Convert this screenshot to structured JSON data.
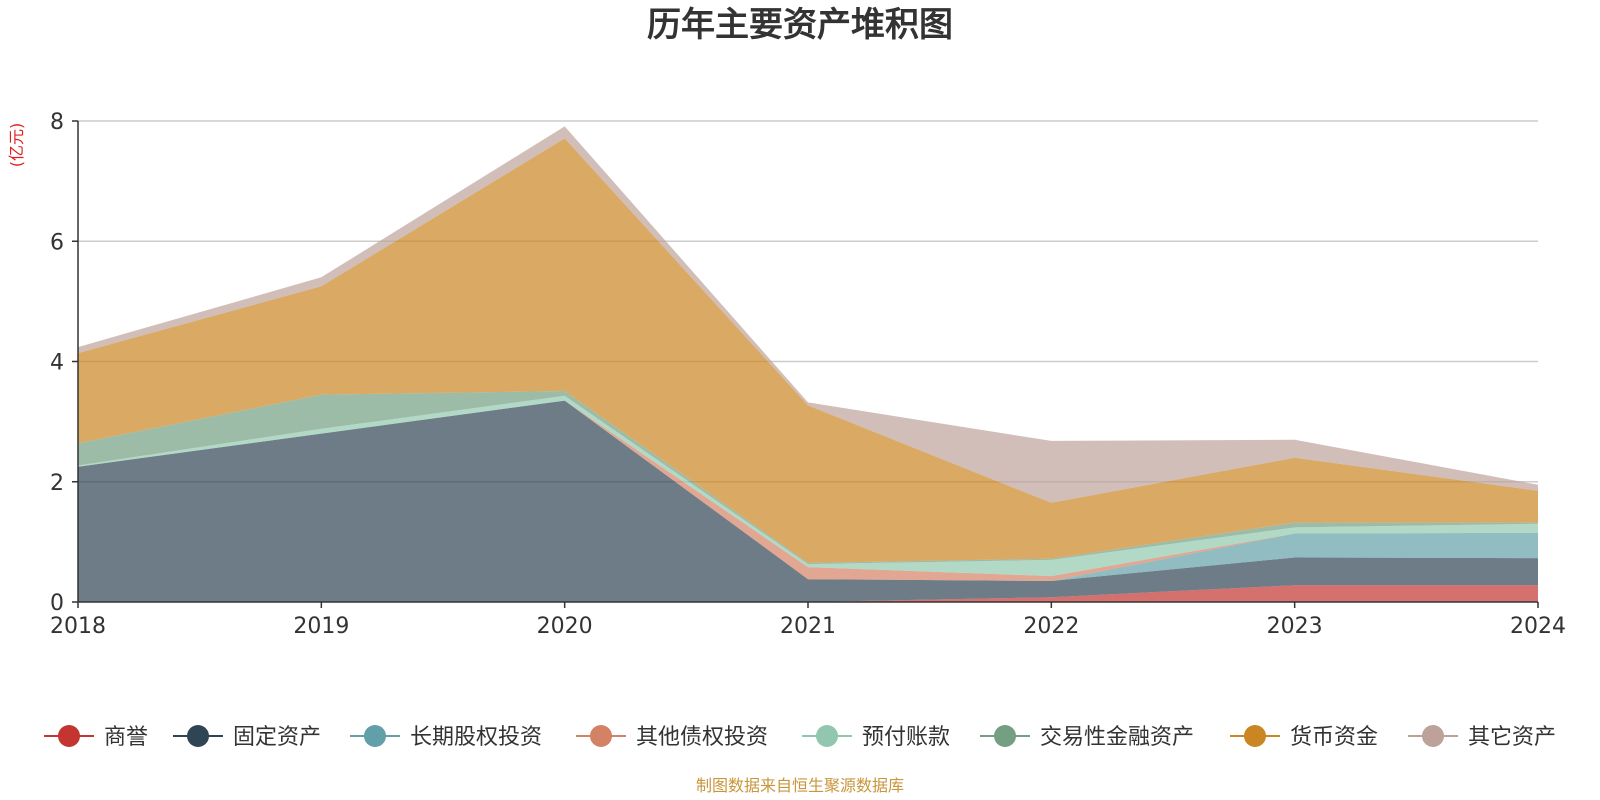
{
  "chart_data": {
    "type": "area",
    "stacked": true,
    "title": "历年主要资产堆积图",
    "y_unit": "(亿元)",
    "source": "制图数据来自恒生聚源数据库",
    "x": [
      "2018",
      "2019",
      "2020",
      "2021",
      "2022",
      "2023",
      "2024"
    ],
    "y_ticks": [
      "0",
      "2",
      "4",
      "6",
      "8"
    ],
    "ylim": [
      0,
      8
    ],
    "grid": true,
    "legend_position": "bottom",
    "series": [
      {
        "name": "商誉",
        "color": "#c23531",
        "values": [
          0,
          0,
          0,
          0,
          0.08,
          0.28,
          0.28
        ]
      },
      {
        "name": "固定资产",
        "color": "#2f4554",
        "values": [
          2.25,
          2.8,
          3.35,
          0.38,
          0.27,
          0.46,
          0.45
        ]
      },
      {
        "name": "长期股权投资",
        "color": "#61a0a8",
        "values": [
          0,
          0,
          0,
          0,
          0,
          0.4,
          0.42
        ]
      },
      {
        "name": "其他债权投资",
        "color": "#d48265",
        "values": [
          0,
          0,
          0,
          0.2,
          0.08,
          0,
          0
        ]
      },
      {
        "name": "预付账款",
        "color": "#91c7ae",
        "values": [
          0.02,
          0.08,
          0.08,
          0.05,
          0.27,
          0.1,
          0.15
        ]
      },
      {
        "name": "交易性金融资产",
        "color": "#749f83",
        "values": [
          0.37,
          0.57,
          0.08,
          0.02,
          0.02,
          0.08,
          0.02
        ]
      },
      {
        "name": "货币资金",
        "color": "#ca8622",
        "values": [
          1.5,
          1.8,
          4.2,
          2.62,
          0.93,
          1.08,
          0.53
        ]
      },
      {
        "name": "其它资产",
        "color": "#bda29a",
        "values": [
          0.1,
          0.15,
          0.2,
          0.05,
          1.03,
          0.3,
          0.1
        ]
      }
    ]
  }
}
